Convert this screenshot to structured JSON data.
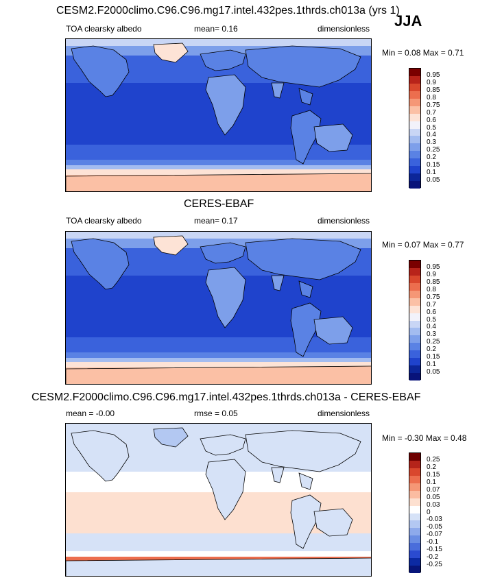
{
  "season": "JJA",
  "panels": [
    {
      "title": "CESM2.F2000climo.C96.C96.mg17.intel.432pes.1thrds.ch013a (yrs 1)",
      "field": "TOA clearsky albedo",
      "mean": "mean=   0.16",
      "units": "dimensionless",
      "minmax": "Min =   0.08 Max =   0.71",
      "levels": [
        "0.95",
        "0.9",
        "0.85",
        "0.8",
        "0.75",
        "0.7",
        "0.6",
        "0.5",
        "0.4",
        "0.3",
        "0.25",
        "0.2",
        "0.15",
        "0.1",
        "0.05"
      ]
    },
    {
      "title": "CERES-EBAF",
      "field": "TOA clearsky albedo",
      "mean": "mean=   0.17",
      "units": "dimensionless",
      "minmax": "Min =   0.07 Max =   0.77",
      "levels": [
        "0.95",
        "0.9",
        "0.85",
        "0.8",
        "0.75",
        "0.7",
        "0.6",
        "0.5",
        "0.4",
        "0.3",
        "0.25",
        "0.2",
        "0.15",
        "0.1",
        "0.05"
      ]
    },
    {
      "title": "CESM2.F2000climo.C96.C96.mg17.intel.432pes.1thrds.ch013a - CERES-EBAF",
      "mean": "mean =   -0.00",
      "rmse": "rmse =   0.05",
      "units": "dimensionless",
      "minmax": "Min =   -0.30 Max =   0.48",
      "levels": [
        "0.25",
        "0.2",
        "0.15",
        "0.1",
        "0.07",
        "0.05",
        "0.03",
        "0",
        "-0.03",
        "-0.05",
        "-0.07",
        "-0.1",
        "-0.15",
        "-0.2",
        "-0.25"
      ]
    }
  ],
  "colors": {
    "seq": [
      "#7a0000",
      "#b8231a",
      "#d9472d",
      "#ec6e4e",
      "#f59776",
      "#fbc0a5",
      "#fde3d6",
      "#f2f2fa",
      "#c9d6f5",
      "#a3bcf0",
      "#7d9fea",
      "#5a82e4",
      "#3a62dc",
      "#1f43cc",
      "#0c2699",
      "#08137a"
    ],
    "diff": [
      "#6e0000",
      "#b5241a",
      "#d9472d",
      "#ec6e4e",
      "#f59776",
      "#fbbca1",
      "#fde0d0",
      "#ffffff",
      "#d6e2f7",
      "#b3c8f2",
      "#8eaaeb",
      "#6a8de3",
      "#4a6ddb",
      "#2b4bd0",
      "#0c2aa3",
      "#07157a"
    ]
  },
  "chart_data": [
    {
      "type": "heatmap",
      "title": "CESM2.F2000climo.C96.C96.mg17.intel.432pes.1thrds.ch013a (yrs 1)",
      "variable": "TOA clearsky albedo",
      "units": "dimensionless",
      "mean": 0.16,
      "min": 0.08,
      "max": 0.71,
      "contour_levels": [
        0.05,
        0.1,
        0.15,
        0.2,
        0.25,
        0.3,
        0.4,
        0.5,
        0.6,
        0.7,
        0.75,
        0.8,
        0.85,
        0.9,
        0.95
      ]
    },
    {
      "type": "heatmap",
      "title": "CERES-EBAF",
      "variable": "TOA clearsky albedo",
      "units": "dimensionless",
      "mean": 0.17,
      "min": 0.07,
      "max": 0.77,
      "contour_levels": [
        0.05,
        0.1,
        0.15,
        0.2,
        0.25,
        0.3,
        0.4,
        0.5,
        0.6,
        0.7,
        0.75,
        0.8,
        0.85,
        0.9,
        0.95
      ]
    },
    {
      "type": "heatmap",
      "title": "CESM2.F2000climo.C96.C96.mg17.intel.432pes.1thrds.ch013a - CERES-EBAF",
      "units": "dimensionless",
      "mean": -0.0,
      "rmse": 0.05,
      "min": -0.3,
      "max": 0.48,
      "contour_levels": [
        -0.25,
        -0.2,
        -0.15,
        -0.1,
        -0.07,
        -0.05,
        -0.03,
        0,
        0.03,
        0.05,
        0.07,
        0.1,
        0.15,
        0.2,
        0.25
      ]
    }
  ]
}
